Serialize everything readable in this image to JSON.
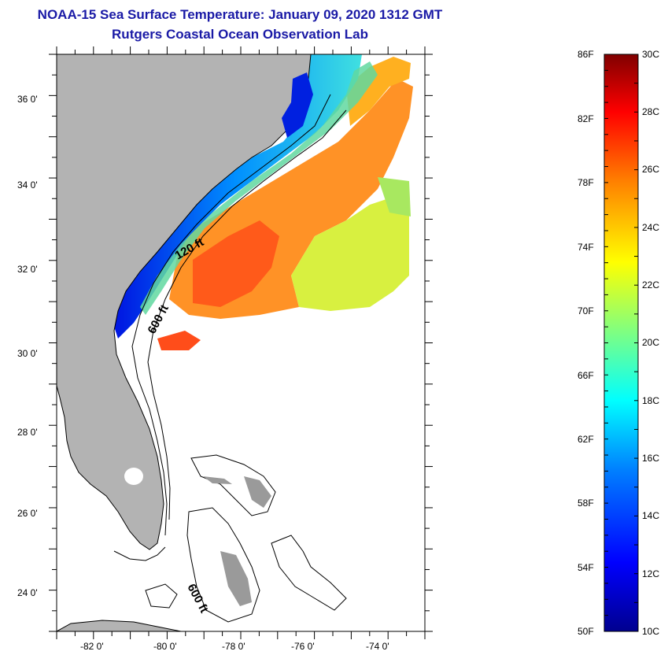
{
  "header": {
    "title": "NOAA-15 Sea Surface Temperature:  January 09, 2020 1312 GMT",
    "subtitle": "Rutgers Coastal Ocean Observation Lab"
  },
  "map": {
    "lon_range": [
      -83,
      -73
    ],
    "lat_range": [
      23,
      37
    ],
    "lat_labels": [
      "36 0'",
      "34 0'",
      "32 0'",
      "30 0'",
      "28 0'",
      "26 0'",
      "24 0'"
    ],
    "lon_labels": [
      "-82 0'",
      "-80 0'",
      "-78 0'",
      "-76 0'",
      "-74 0'"
    ],
    "contour_labels": [
      "120 ft",
      "600 ft",
      "600 ft"
    ],
    "colors": {
      "land": "#b3b3b3",
      "cloud": "#ffffff"
    }
  },
  "colorbar": {
    "fahrenheit_labels": [
      "86F",
      "82F",
      "78F",
      "74F",
      "70F",
      "66F",
      "62F",
      "58F",
      "54F",
      "50F"
    ],
    "celsius_labels": [
      "30C",
      "28C",
      "26C",
      "24C",
      "22C",
      "20C",
      "18C",
      "16C",
      "14C",
      "12C",
      "10C"
    ],
    "range_c": [
      10,
      30
    ],
    "colors": [
      "#00008f",
      "#0000ff",
      "#0080ff",
      "#00ffff",
      "#80ff80",
      "#ffff00",
      "#ff8000",
      "#ff0000",
      "#800000"
    ]
  }
}
